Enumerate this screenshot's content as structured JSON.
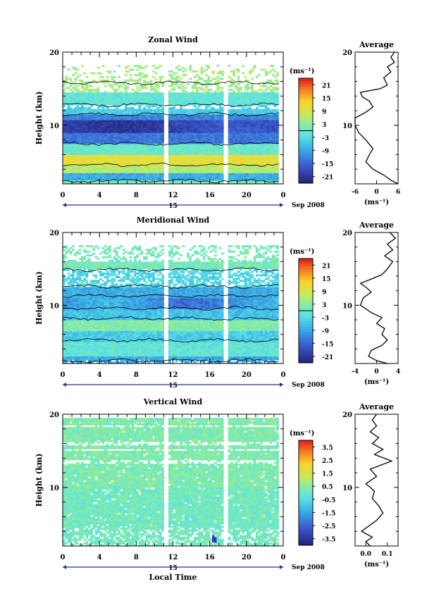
{
  "figure": {
    "date_label": "Sep 2008",
    "day_label": "15",
    "xlabel": "Local Time",
    "average_title": "Average",
    "unit_label": "(ms⁻¹)",
    "height_label": "Height (km)"
  },
  "chart_data": [
    {
      "type": "heatmap",
      "title": "Zonal Wind",
      "xlabel": "",
      "ylabel": "Height (km)",
      "x_ticks": [
        "0",
        "4",
        "8",
        "12",
        "16",
        "20",
        "0"
      ],
      "xlim": [
        0,
        24
      ],
      "ylim": [
        2,
        20
      ],
      "y_ticks": [
        10,
        20
      ],
      "colorbar": {
        "label": "(ms⁻¹)",
        "ticks": [
          "21",
          "15",
          "9",
          "3",
          "-3",
          "-9",
          "-15",
          "-21"
        ],
        "range": [
          -24,
          24
        ]
      },
      "profile_points": [
        [
          6,
          2
        ],
        [
          4,
          2.5
        ],
        [
          2,
          3.2
        ],
        [
          -1,
          4
        ],
        [
          -3,
          5
        ],
        [
          -2,
          6
        ],
        [
          -1,
          6.8
        ],
        [
          -3,
          8
        ],
        [
          -5,
          9
        ],
        [
          -6,
          10
        ],
        [
          -6,
          11
        ],
        [
          -3,
          11.8
        ],
        [
          -1,
          12.5
        ],
        [
          -2,
          13.3
        ],
        [
          -4,
          13.9
        ],
        [
          -4.5,
          14.5
        ],
        [
          1,
          15
        ],
        [
          3,
          15.5
        ],
        [
          2,
          16.5
        ],
        [
          4,
          17.3
        ],
        [
          3,
          18
        ],
        [
          5,
          18.6
        ],
        [
          4,
          19.3
        ],
        [
          5,
          20
        ]
      ],
      "profile_xlim": [
        -6,
        6
      ],
      "profile_xticks": [
        "-6",
        "0",
        "6"
      ],
      "profile_xlabel": "(ms⁻¹)"
    },
    {
      "type": "heatmap",
      "title": "Meridional Wind",
      "xlabel": "",
      "ylabel": "Height (km)",
      "x_ticks": [
        "0",
        "4",
        "8",
        "12",
        "16",
        "20",
        "0"
      ],
      "xlim": [
        0,
        24
      ],
      "ylim": [
        2,
        20
      ],
      "y_ticks": [
        10,
        20
      ],
      "colorbar": {
        "label": "(ms⁻¹)",
        "ticks": [
          "21",
          "15",
          "9",
          "3",
          "-3",
          "-9",
          "-15",
          "-21"
        ],
        "range": [
          -24,
          24
        ]
      },
      "profile_points": [
        [
          2,
          2
        ],
        [
          0,
          2.4
        ],
        [
          -1.5,
          3
        ],
        [
          -1,
          3.8
        ],
        [
          1,
          4.5
        ],
        [
          2,
          5.2
        ],
        [
          1,
          6
        ],
        [
          1.5,
          6.8
        ],
        [
          0,
          7.5
        ],
        [
          1,
          8.3
        ],
        [
          -1,
          9
        ],
        [
          -3,
          10
        ],
        [
          -2.5,
          11
        ],
        [
          -1,
          11.8
        ],
        [
          -2,
          12.5
        ],
        [
          -3,
          13
        ],
        [
          -1,
          13.6
        ],
        [
          1,
          14.2
        ],
        [
          2,
          15
        ],
        [
          3,
          16
        ],
        [
          1.5,
          16.8
        ],
        [
          3,
          17.6
        ],
        [
          2,
          18.4
        ],
        [
          3.5,
          19.2
        ],
        [
          2.5,
          20
        ]
      ],
      "profile_xlim": [
        -4,
        4
      ],
      "profile_xticks": [
        "-4",
        "0",
        "4"
      ],
      "profile_xlabel": "(ms⁻¹)"
    },
    {
      "type": "heatmap",
      "title": "Vertical Wind",
      "xlabel": "Local Time",
      "ylabel": "Height (km)",
      "x_ticks": [
        "0",
        "4",
        "8",
        "12",
        "16",
        "20",
        "0"
      ],
      "xlim": [
        0,
        24
      ],
      "ylim": [
        2,
        20
      ],
      "y_ticks": [
        10,
        20
      ],
      "colorbar": {
        "label": "(ms⁻¹)",
        "ticks": [
          "3.5",
          "2.5",
          "1.5",
          "0.5",
          "-0.5",
          "-1.5",
          "-2.5",
          "-3.5"
        ],
        "range": [
          -4,
          4
        ]
      },
      "profile_points": [
        [
          0.02,
          2
        ],
        [
          0.0,
          2.6
        ],
        [
          0.03,
          3.2
        ],
        [
          -0.02,
          4
        ],
        [
          0.05,
          5.5
        ],
        [
          0.08,
          6.5
        ],
        [
          0.06,
          7.5
        ],
        [
          0.03,
          8.5
        ],
        [
          0.04,
          9.5
        ],
        [
          0.0,
          10.5
        ],
        [
          0.05,
          11.5
        ],
        [
          0.02,
          12.5
        ],
        [
          0.12,
          13.6
        ],
        [
          0.04,
          14.5
        ],
        [
          0.08,
          15.2
        ],
        [
          0.03,
          16
        ],
        [
          0.06,
          16.8
        ],
        [
          0.02,
          17.6
        ],
        [
          0.05,
          18.4
        ],
        [
          0.03,
          19.2
        ],
        [
          0.05,
          20
        ]
      ],
      "profile_xlim": [
        -0.05,
        0.15
      ],
      "profile_xticks": [
        "0.0",
        "0.1"
      ],
      "profile_xlabel": "(ms⁻¹)"
    }
  ]
}
